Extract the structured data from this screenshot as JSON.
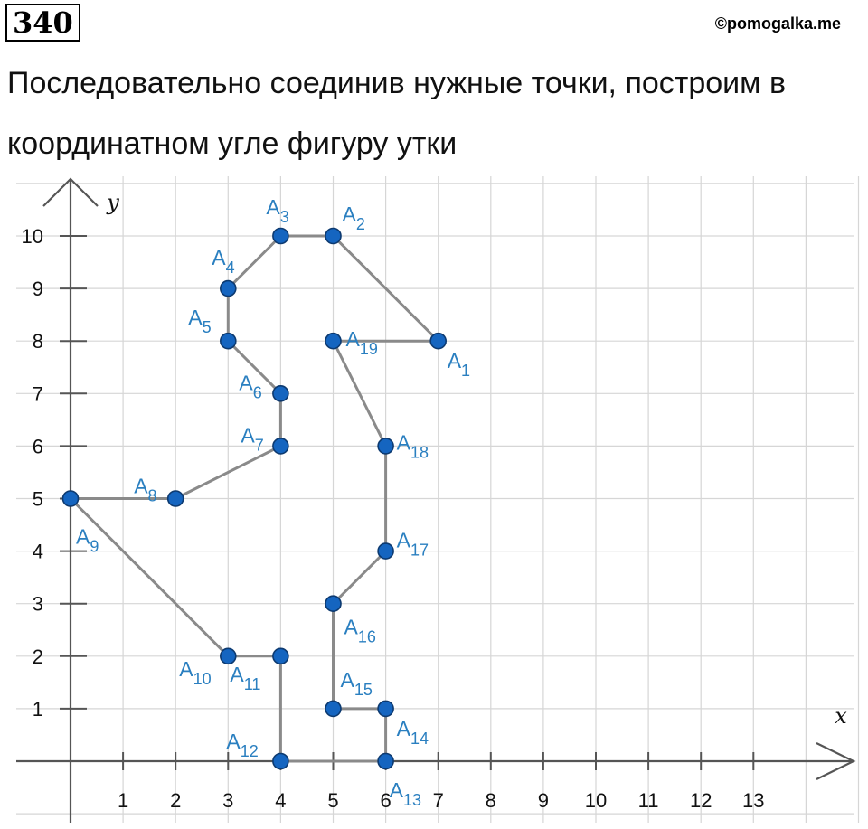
{
  "header": {
    "number": "340",
    "watermark": "©pomogalka.me"
  },
  "text": {
    "line1": "Последовательно соединив нужные точки, построим в",
    "line2": "координатном угле фигуру утки"
  },
  "colors": {
    "point_fill": "#1565c0",
    "point_label": "#2a7fc0",
    "segment": "#8a8a8a",
    "grid": "#d6d6d6",
    "axis": "#555555"
  },
  "chart_data": {
    "type": "scatter",
    "xlabel": "x",
    "ylabel": "y",
    "xlim": [
      0,
      13
    ],
    "ylim": [
      0,
      10
    ],
    "x_ticks": [
      "1",
      "2",
      "3",
      "4",
      "5",
      "6",
      "7",
      "8",
      "9",
      "10",
      "11",
      "12",
      "13"
    ],
    "y_ticks": [
      "1",
      "2",
      "3",
      "4",
      "5",
      "6",
      "7",
      "8",
      "9",
      "10"
    ],
    "grid": true,
    "points": [
      {
        "name": "A1",
        "x": 7,
        "y": 8
      },
      {
        "name": "A2",
        "x": 5,
        "y": 10
      },
      {
        "name": "A3",
        "x": 4,
        "y": 10
      },
      {
        "name": "A4",
        "x": 3,
        "y": 9
      },
      {
        "name": "A5",
        "x": 3,
        "y": 8
      },
      {
        "name": "A6",
        "x": 4,
        "y": 7
      },
      {
        "name": "A7",
        "x": 4,
        "y": 6
      },
      {
        "name": "A8",
        "x": 2,
        "y": 5
      },
      {
        "name": "A9",
        "x": 0,
        "y": 5
      },
      {
        "name": "A10",
        "x": 3,
        "y": 2
      },
      {
        "name": "A11",
        "x": 4,
        "y": 2
      },
      {
        "name": "A12",
        "x": 4,
        "y": 0
      },
      {
        "name": "A13",
        "x": 6,
        "y": 0
      },
      {
        "name": "A14",
        "x": 6,
        "y": 1
      },
      {
        "name": "A15",
        "x": 5,
        "y": 1
      },
      {
        "name": "A16",
        "x": 5,
        "y": 3
      },
      {
        "name": "A17",
        "x": 6,
        "y": 4
      },
      {
        "name": "A18",
        "x": 6,
        "y": 6
      },
      {
        "name": "A19",
        "x": 5,
        "y": 8
      }
    ],
    "path": [
      "A1",
      "A2",
      "A3",
      "A4",
      "A5",
      "A6",
      "A7",
      "A8",
      "A9",
      "A10",
      "A11",
      "A12",
      "A13",
      "A14",
      "A15",
      "A16",
      "A17",
      "A18",
      "A19",
      "A1"
    ]
  }
}
